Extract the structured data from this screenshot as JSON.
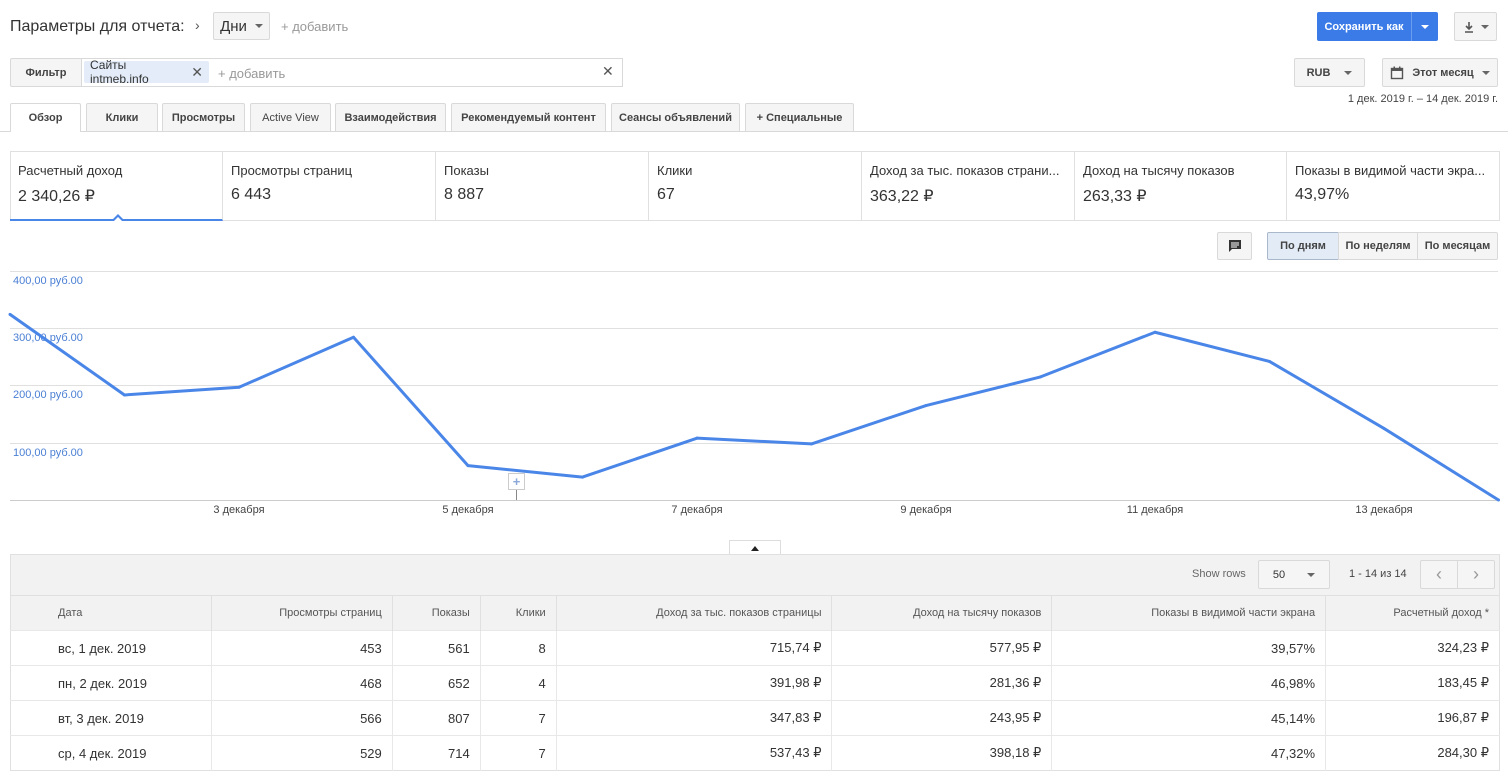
{
  "header": {
    "params_label": "Параметры для отчета:",
    "dimension": "Дни",
    "add": "+ добавить",
    "save_as": "Сохранить как"
  },
  "filter": {
    "label": "Фильтр",
    "chip": "Сайты intmeb.info",
    "placeholder": "+ добавить",
    "currency": "RUB",
    "period": "Этот месяц",
    "date_range": "1 дек. 2019 г. – 14 дек. 2019 г."
  },
  "tabs": [
    {
      "label": "Обзор"
    },
    {
      "label": "Клики"
    },
    {
      "label": "Просмотры"
    },
    {
      "label": "Active View"
    },
    {
      "label": "Взаимодействия"
    },
    {
      "label": "Рекомендуемый контент"
    },
    {
      "label": "Сеансы объявлений"
    },
    {
      "label": "+ Специальные"
    }
  ],
  "scorecards": [
    {
      "label": "Расчетный доход",
      "value": "2 340,26 ₽"
    },
    {
      "label": "Просмотры страниц",
      "value": "6 443"
    },
    {
      "label": "Показы",
      "value": "8 887"
    },
    {
      "label": "Клики",
      "value": "67"
    },
    {
      "label": "Доход за тыс. показов страни...",
      "value": "363,22 ₽"
    },
    {
      "label": "Доход на тысячу показов",
      "value": "263,33 ₽"
    },
    {
      "label": "Показы в видимой части экра...",
      "value": "43,97%"
    }
  ],
  "granularity": {
    "days": "По дням",
    "weeks": "По неделям",
    "months": "По месяцам"
  },
  "chart_data": {
    "type": "line",
    "yticks": [
      "400,00 руб.00",
      "300,00 руб.00",
      "200,00 руб.00",
      "100,00 руб.00"
    ],
    "ylim": [
      0,
      400
    ],
    "xticks": [
      "3 декабря",
      "5 декабря",
      "7 декабря",
      "9 декабря",
      "11 декабря",
      "13 декабря"
    ],
    "x": [
      "1 дек.",
      "2 дек.",
      "3 дек.",
      "4 дек.",
      "5 дек.",
      "6 дек.",
      "7 дек.",
      "8 дек.",
      "9 дек.",
      "10 дек.",
      "11 дек.",
      "12 дек.",
      "13 дек.",
      "14 дек."
    ],
    "series": [
      {
        "values": [
          324.23,
          183.45,
          196.87,
          284.3,
          60,
          40,
          108,
          98,
          165,
          215,
          293,
          242,
          125,
          0
        ]
      }
    ],
    "color": "#4a86e8",
    "grid": true
  },
  "table": {
    "show_rows_label": "Show rows",
    "rows_value": "50",
    "pagination": "1 - 14 из 14",
    "columns": [
      "Дата",
      "Просмотры страниц",
      "Показы",
      "Клики",
      "Доход за тыс. показов страницы",
      "Доход на тысячу показов",
      "Показы в видимой части экрана",
      "Расчетный доход *"
    ],
    "rows": [
      [
        "вс, 1 дек. 2019",
        "453",
        "561",
        "8",
        "715,74 ₽",
        "577,95 ₽",
        "39,57%",
        "324,23 ₽"
      ],
      [
        "пн, 2 дек. 2019",
        "468",
        "652",
        "4",
        "391,98 ₽",
        "281,36 ₽",
        "46,98%",
        "183,45 ₽"
      ],
      [
        "вт, 3 дек. 2019",
        "566",
        "807",
        "7",
        "347,83 ₽",
        "243,95 ₽",
        "45,14%",
        "196,87 ₽"
      ],
      [
        "ср, 4 дек. 2019",
        "529",
        "714",
        "7",
        "537,43 ₽",
        "398,18 ₽",
        "47,32%",
        "284,30 ₽"
      ]
    ]
  }
}
